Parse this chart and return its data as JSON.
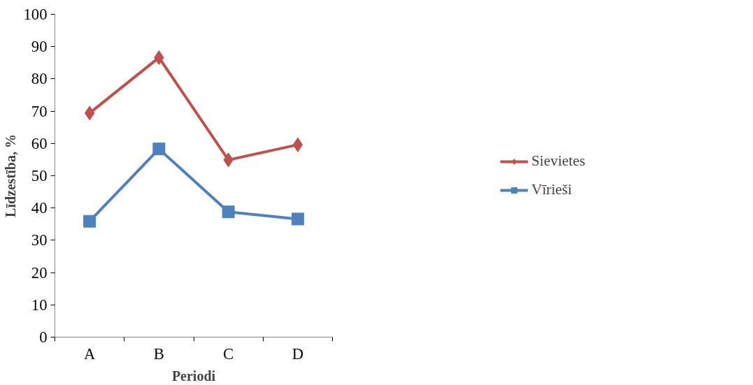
{
  "chart_data": {
    "type": "line",
    "xlabel": "Periodi",
    "ylabel": "Līdzestība, %",
    "categories": [
      "A",
      "B",
      "C",
      "D"
    ],
    "series": [
      {
        "name": "Sievietes",
        "color": "#c0504d",
        "marker": "diamond",
        "values": [
          69.4,
          86.6,
          54.9,
          59.6
        ]
      },
      {
        "name": "Vīrieši",
        "color": "#4f81bd",
        "marker": "square",
        "values": [
          35.9,
          58.3,
          38.8,
          36.6
        ]
      }
    ],
    "ylim": [
      0,
      100
    ],
    "yticks": [
      0,
      10,
      20,
      30,
      40,
      50,
      60,
      70,
      80,
      90,
      100
    ],
    "grid": false,
    "legend": "right",
    "line_style": "solid"
  }
}
